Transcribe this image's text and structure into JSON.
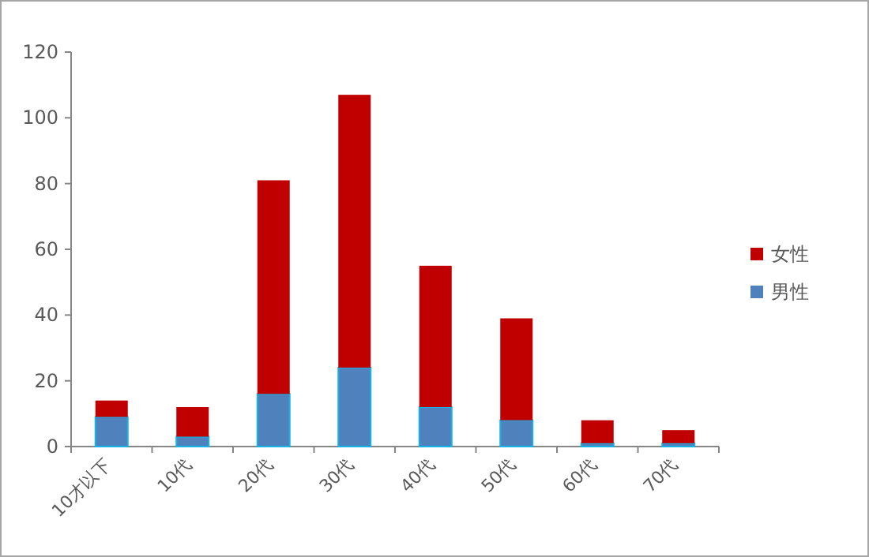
{
  "chart_data": {
    "type": "bar",
    "stacked": true,
    "categories": [
      "10才以下",
      "10代",
      "20代",
      "30代",
      "40代",
      "50代",
      "60代",
      "70代"
    ],
    "series": [
      {
        "name": "男性",
        "color": "#4f81bd",
        "values": [
          9,
          3,
          16,
          24,
          12,
          8,
          1,
          1
        ]
      },
      {
        "name": "女性",
        "color": "#c00000",
        "values": [
          5,
          9,
          65,
          83,
          43,
          31,
          7,
          4
        ]
      }
    ],
    "ylim": [
      0,
      120
    ],
    "yticks": [
      0,
      20,
      40,
      60,
      80,
      100,
      120
    ],
    "grid": false,
    "legend": "right"
  }
}
